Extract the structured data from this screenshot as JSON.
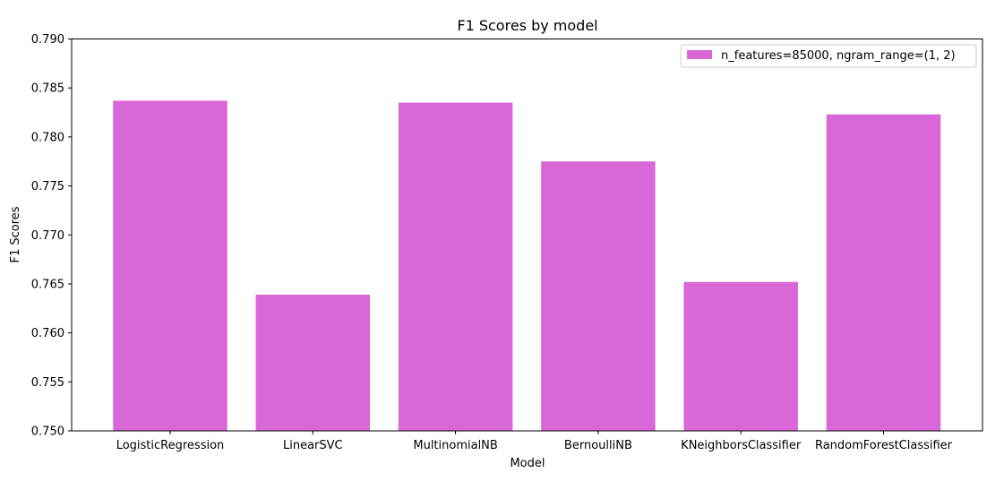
{
  "chart_data": {
    "type": "bar",
    "title": "F1 Scores by model",
    "xlabel": "Model",
    "ylabel": "F1 Scores",
    "categories": [
      "LogisticRegression",
      "LinearSVC",
      "MultinomialNB",
      "BernoulliNB",
      "KNeighborsClassifier",
      "RandomForestClassifier"
    ],
    "series": [
      {
        "name": "n_features=85000, ngram_range=(1, 2)",
        "values": [
          0.7837,
          0.7639,
          0.7835,
          0.7775,
          0.7652,
          0.7823
        ],
        "color": "#da67d8"
      }
    ],
    "ylim": [
      0.75,
      0.79
    ],
    "yticks": [
      "0.750",
      "0.755",
      "0.760",
      "0.765",
      "0.770",
      "0.775",
      "0.780",
      "0.785",
      "0.790"
    ],
    "grid": false,
    "legend_position": "top-right"
  }
}
